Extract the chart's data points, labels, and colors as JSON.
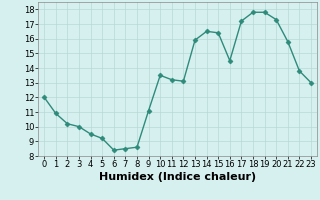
{
  "x": [
    0,
    1,
    2,
    3,
    4,
    5,
    6,
    7,
    8,
    9,
    10,
    11,
    12,
    13,
    14,
    15,
    16,
    17,
    18,
    19,
    20,
    21,
    22,
    23
  ],
  "y": [
    12.0,
    10.9,
    10.2,
    10.0,
    9.5,
    9.2,
    8.4,
    8.5,
    8.6,
    11.1,
    13.5,
    13.2,
    13.1,
    15.9,
    16.5,
    16.4,
    14.5,
    17.2,
    17.8,
    17.8,
    17.3,
    15.8,
    13.8,
    13.0
  ],
  "line_color": "#2e8b7a",
  "marker": "D",
  "marker_size": 2.5,
  "bg_color": "#d6f0ef",
  "grid_color": "#b8d8d4",
  "xlabel": "Humidex (Indice chaleur)",
  "xlim": [
    -0.5,
    23.5
  ],
  "ylim": [
    8,
    18.5
  ],
  "yticks": [
    8,
    9,
    10,
    11,
    12,
    13,
    14,
    15,
    16,
    17,
    18
  ],
  "xtick_labels": [
    "0",
    "1",
    "2",
    "3",
    "4",
    "5",
    "6",
    "7",
    "8",
    "9",
    "1011",
    "1213",
    "1415",
    "1617",
    "1819",
    "2021",
    "2223"
  ],
  "tick_label_size": 6,
  "xlabel_size": 8,
  "xlabel_weight": "bold"
}
